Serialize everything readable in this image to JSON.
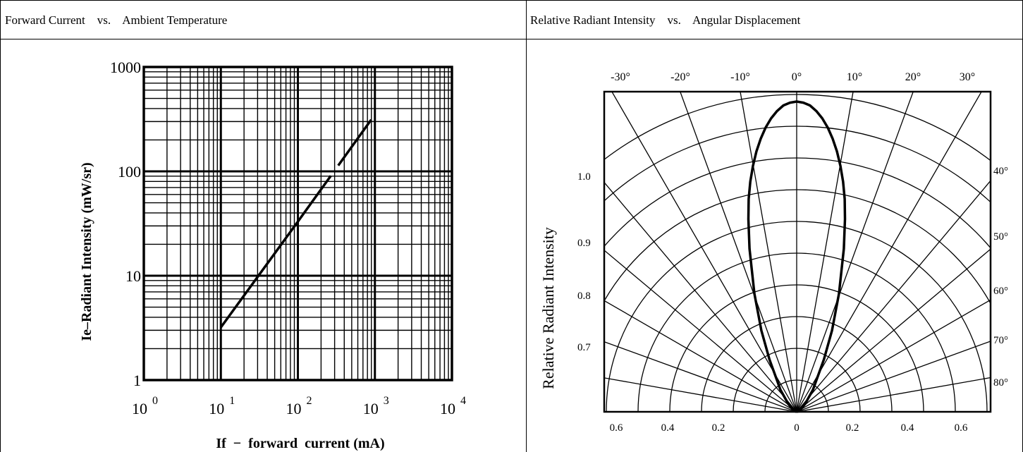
{
  "headers": {
    "left": "Forward Current    vs.    Ambient Temperature",
    "right": "Relative Radiant Intensity    vs.    Angular Displacement"
  },
  "chart_data": [
    {
      "type": "line",
      "xscale": "log",
      "yscale": "log",
      "xlim": [
        1,
        10000
      ],
      "ylim": [
        1,
        1000
      ],
      "xticks": [
        1,
        10,
        100,
        1000,
        10000
      ],
      "xtick_bases": [
        "10",
        "10",
        "10",
        "10",
        "10"
      ],
      "xtick_exponents": [
        "0",
        "1",
        "2",
        "3",
        "4"
      ],
      "ytick_labels": [
        "1",
        "10",
        "100",
        "1000"
      ],
      "yticks": [
        1,
        10,
        100,
        1000
      ],
      "xlabel": "If  −  forward  current (mA)",
      "ylabel": "Ie–Radiant  Intensity (mW/sr)",
      "grid": true,
      "series": [
        {
          "x": [
            10,
            100
          ],
          "y": [
            3.2,
            33
          ],
          "style": "solid"
        },
        {
          "x": [
            100,
            1000
          ],
          "y": [
            33,
            350
          ],
          "style": "dashed"
        }
      ]
    },
    {
      "type": "polar",
      "angle_range": [
        -90,
        90
      ],
      "top_labels": [
        "-30°",
        "-20°",
        "-10°",
        "0°",
        "10°",
        "20°",
        "30°"
      ],
      "right_labels": [
        "40°",
        "50°",
        "60°",
        "70°",
        "80°"
      ],
      "left_labels": [
        "1.0",
        "0.9",
        "0.8",
        "0.7"
      ],
      "bottom_labels": [
        "0.6",
        "0.4",
        "0.2",
        "0",
        "0.2",
        "0.4",
        "0.6"
      ],
      "ylabel": "Relative Radiant Intensity",
      "series": [
        {
          "angles": [
            0,
            2,
            4,
            6,
            8,
            10,
            12,
            14,
            16,
            18,
            20,
            22,
            25,
            30,
            35,
            40,
            50,
            60,
            70,
            80,
            90
          ],
          "values": [
            1.0,
            0.997,
            0.99,
            0.975,
            0.955,
            0.93,
            0.9,
            0.865,
            0.825,
            0.78,
            0.73,
            0.67,
            0.58,
            0.44,
            0.32,
            0.22,
            0.11,
            0.05,
            0.02,
            0.01,
            0.0
          ]
        }
      ]
    }
  ]
}
